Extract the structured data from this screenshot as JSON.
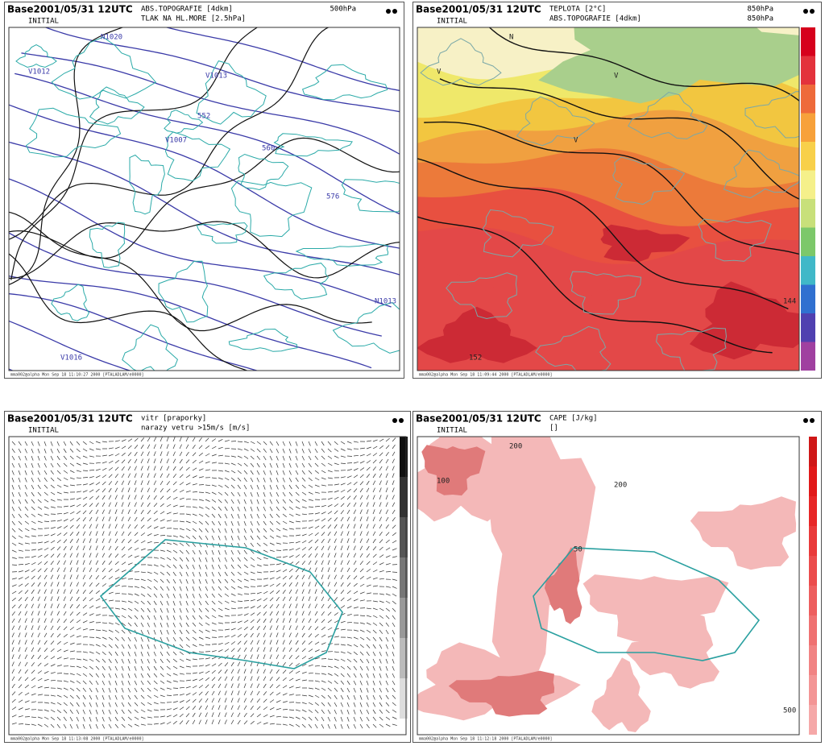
{
  "panels": [
    {
      "base": "Base2001/05/31 12UTC",
      "run": "INITIAL",
      "title": [
        "ABS.TOPOGRAFIE [4dkm]",
        "TLAK NA HL.MORE [2.5hPa]"
      ],
      "level": [
        "500hPa"
      ],
      "footer": "mma002@alpha Mon Sep 18 11:10:27 2000 [PTALADLAM/e0000]",
      "labels": [
        "N1020",
        "V1012",
        "V1007",
        "V1013",
        "N1013",
        "V1016",
        "552",
        "560",
        "576"
      ]
    },
    {
      "base": "Base2001/05/31 12UTC",
      "run": "INITIAL",
      "title": [
        "TEPLOTA [2°C]",
        "ABS.TOPOGRAFIE [4dkm]"
      ],
      "level": [
        "850hPa",
        "850hPa"
      ],
      "footer": "mma002@alpha Mon Sep 18 11:09:44 2000 [PTALADLAM/e0000]",
      "labels": [
        "N",
        "V",
        "V",
        "V",
        "144",
        "152"
      ]
    },
    {
      "base": "Base2001/05/31 12UTC",
      "run": "INITIAL",
      "title": [
        "vitr [praporky]",
        "narazy vetru >15m/s [m/s]"
      ],
      "level": [],
      "footer": "mma002@alpha Mon Sep 18 11:13:08 2000 [PTALADLAM/e0000]",
      "labels": []
    },
    {
      "base": "Base2001/05/31 12UTC",
      "run": "INITIAL",
      "title": [
        "CAPE [J/kg]",
        "[]"
      ],
      "level": [],
      "footer": "mma002@alpha Mon Sep 18 11:12:18 2000 [PTALADLAM/e0000]",
      "labels": [
        "200",
        "100",
        "50",
        "200",
        "500"
      ]
    }
  ]
}
